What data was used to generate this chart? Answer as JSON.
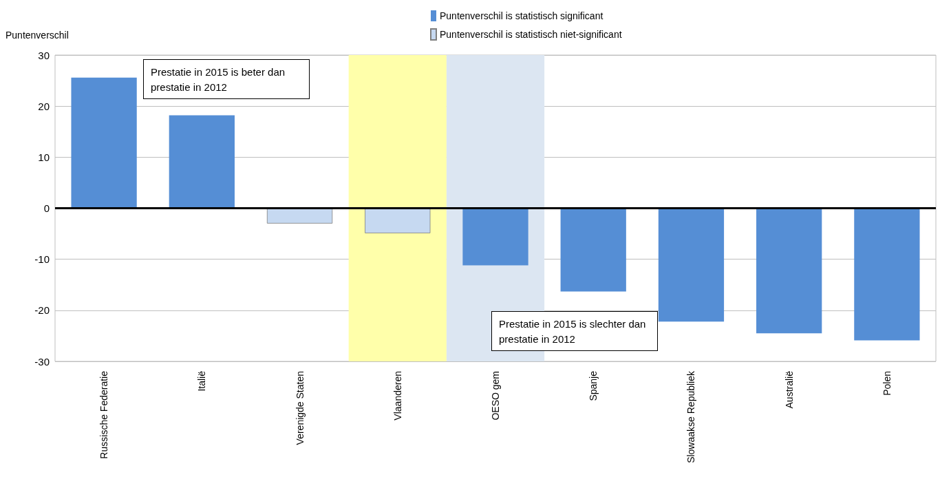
{
  "chart_data": {
    "type": "bar",
    "ylabel": "Puntenverschil",
    "categories": [
      "Russische Federatie",
      "Italië",
      "Verenigde Staten",
      "Vlaanderen",
      "OESO gem",
      "Spanje",
      "Slowaakse Republiek",
      "Australië",
      "Polen"
    ],
    "series": [
      {
        "name": "Puntenverschil is statistisch significant",
        "color": "#558ed5",
        "values": [
          25.6,
          18.2,
          null,
          null,
          -11.2,
          -16.3,
          -22.2,
          -24.5,
          -25.9
        ]
      },
      {
        "name": "Puntenverschil is statistisch niet-significant",
        "color": "#c6d9f1",
        "values": [
          null,
          null,
          -3.0,
          -4.9,
          null,
          null,
          null,
          null,
          null
        ]
      }
    ],
    "ylim": [
      -30,
      30
    ],
    "yticks": [
      -30,
      -20,
      -10,
      0,
      10,
      20,
      30
    ],
    "grid": "y",
    "legend": "top",
    "bands": [
      {
        "axis": "x",
        "from": "Vlaanderen",
        "to": "Vlaanderen",
        "color": "#ffffaa"
      },
      {
        "axis": "x",
        "from": "OESO gem",
        "to": "OESO gem",
        "color": "#dce6f2"
      }
    ],
    "annotations": [
      "Prestatie in 2015 is beter dan prestatie in 2012",
      "Prestatie in 2015 is slechter dan prestatie in 2012"
    ]
  }
}
